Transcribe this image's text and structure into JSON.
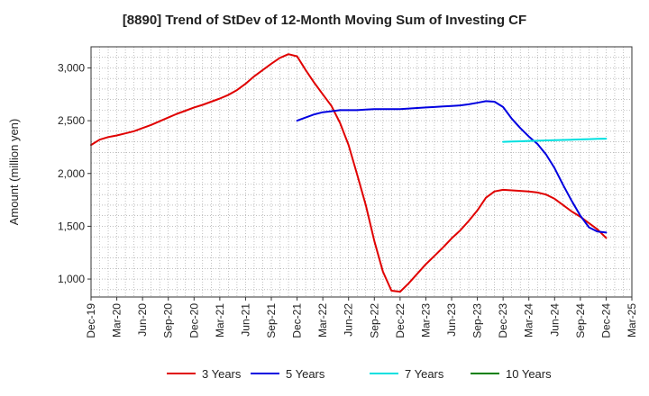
{
  "title": "[8890]  Trend of StDev of 12-Month Moving Sum of Investing CF",
  "chart_data": {
    "type": "line",
    "title": "[8890]  Trend of StDev of 12-Month Moving Sum of Investing CF",
    "xlabel": "",
    "ylabel": "Amount (million yen)",
    "ylim": [
      830,
      3200
    ],
    "yticks": [
      1000,
      1500,
      2000,
      2500,
      3000
    ],
    "ytick_labels": [
      "1,000",
      "1,500",
      "2,000",
      "2,500",
      "3,000"
    ],
    "xlim": [
      "2019-12",
      "2025-03"
    ],
    "xtick_labels": [
      "Dec-19",
      "Mar-20",
      "Jun-20",
      "Sep-20",
      "Dec-20",
      "Mar-21",
      "Jun-21",
      "Sep-21",
      "Dec-21",
      "Mar-22",
      "Jun-22",
      "Sep-22",
      "Dec-22",
      "Mar-23",
      "Jun-23",
      "Sep-23",
      "Dec-23",
      "Mar-24",
      "Jun-24",
      "Sep-24",
      "Dec-24",
      "Mar-25"
    ],
    "grid": true,
    "legend_position": "bottom",
    "series": [
      {
        "name": "3 Years",
        "color": "#e00000",
        "x": [
          "2019-12",
          "2020-01",
          "2020-02",
          "2020-03",
          "2020-04",
          "2020-05",
          "2020-06",
          "2020-07",
          "2020-08",
          "2020-09",
          "2020-10",
          "2020-11",
          "2020-12",
          "2021-01",
          "2021-02",
          "2021-03",
          "2021-04",
          "2021-05",
          "2021-06",
          "2021-07",
          "2021-08",
          "2021-09",
          "2021-10",
          "2021-11",
          "2021-12",
          "2022-01",
          "2022-02",
          "2022-03",
          "2022-04",
          "2022-05",
          "2022-06",
          "2022-07",
          "2022-08",
          "2022-09",
          "2022-10",
          "2022-11",
          "2022-12",
          "2023-01",
          "2023-02",
          "2023-03",
          "2023-04",
          "2023-05",
          "2023-06",
          "2023-07",
          "2023-08",
          "2023-09",
          "2023-10",
          "2023-11",
          "2023-12",
          "2024-01",
          "2024-02",
          "2024-03",
          "2024-04",
          "2024-05",
          "2024-06",
          "2024-07",
          "2024-08",
          "2024-09",
          "2024-10",
          "2024-11",
          "2024-12"
        ],
        "values": [
          2270,
          2320,
          2345,
          2360,
          2380,
          2400,
          2430,
          2460,
          2495,
          2530,
          2565,
          2595,
          2625,
          2650,
          2680,
          2710,
          2745,
          2790,
          2850,
          2920,
          2980,
          3040,
          3095,
          3130,
          3110,
          2980,
          2860,
          2750,
          2640,
          2480,
          2270,
          1990,
          1700,
          1360,
          1070,
          890,
          880,
          960,
          1050,
          1140,
          1220,
          1300,
          1385,
          1460,
          1550,
          1650,
          1770,
          1830,
          1845,
          1840,
          1835,
          1830,
          1820,
          1800,
          1760,
          1700,
          1640,
          1590,
          1530,
          1470,
          1390
        ]
      },
      {
        "name": "5 Years",
        "color": "#0000e0",
        "x": [
          "2021-12",
          "2022-01",
          "2022-02",
          "2022-03",
          "2022-04",
          "2022-05",
          "2022-06",
          "2022-07",
          "2022-08",
          "2022-09",
          "2022-10",
          "2022-11",
          "2022-12",
          "2023-01",
          "2023-02",
          "2023-03",
          "2023-04",
          "2023-05",
          "2023-06",
          "2023-07",
          "2023-08",
          "2023-09",
          "2023-10",
          "2023-11",
          "2023-12",
          "2024-01",
          "2024-02",
          "2024-03",
          "2024-04",
          "2024-05",
          "2024-06",
          "2024-07",
          "2024-08",
          "2024-09",
          "2024-10",
          "2024-11",
          "2024-12"
        ],
        "values": [
          2500,
          2530,
          2560,
          2580,
          2590,
          2600,
          2600,
          2600,
          2605,
          2610,
          2610,
          2610,
          2610,
          2615,
          2620,
          2625,
          2630,
          2635,
          2640,
          2645,
          2655,
          2670,
          2685,
          2680,
          2630,
          2520,
          2430,
          2350,
          2280,
          2180,
          2050,
          1890,
          1740,
          1600,
          1490,
          1450,
          1440
        ]
      },
      {
        "name": "7 Years",
        "color": "#00e0e0",
        "x": [
          "2023-12",
          "2024-01",
          "2024-02",
          "2024-03",
          "2024-04",
          "2024-05",
          "2024-06",
          "2024-07",
          "2024-08",
          "2024-09",
          "2024-10",
          "2024-11",
          "2024-12"
        ],
        "values": [
          2300,
          2302,
          2305,
          2308,
          2310,
          2313,
          2315,
          2318,
          2320,
          2323,
          2325,
          2328,
          2330
        ]
      },
      {
        "name": "10 Years",
        "color": "#008000",
        "x": [],
        "values": []
      }
    ]
  }
}
